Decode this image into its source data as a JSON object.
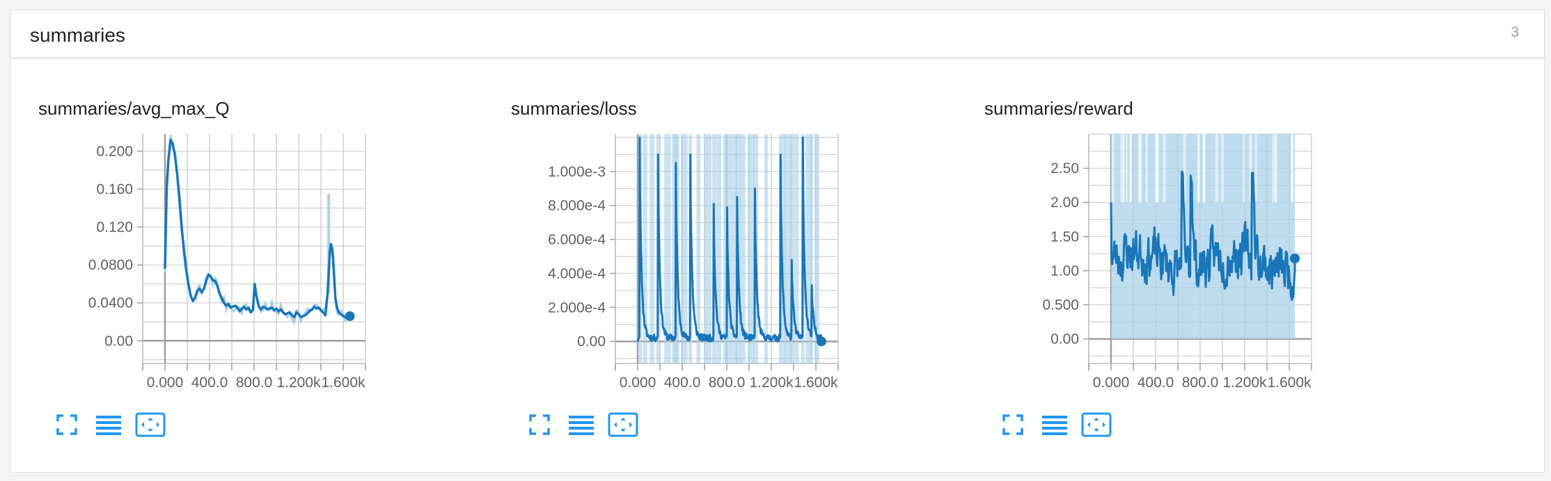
{
  "panel": {
    "title": "summaries",
    "count": "3"
  },
  "colors": {
    "line": "#1976b8",
    "band": "#a9d1e8",
    "grid": "#d0d0d0",
    "icon": "#2196f3"
  },
  "chart_data": [
    {
      "type": "line",
      "title": "summaries/avg_max_Q",
      "xlim": [
        -200,
        1800
      ],
      "ylim": [
        -0.024,
        0.218
      ],
      "x_ticks": [
        0,
        400,
        800,
        1200,
        1600
      ],
      "x_tick_labels": [
        "0.000",
        "400.0",
        "800.0",
        "1.200k",
        "1.600k"
      ],
      "y_ticks": [
        0,
        0.04,
        0.08,
        0.12,
        0.16,
        0.2
      ],
      "y_tick_labels": [
        "0.00",
        "0.0400",
        "0.0800",
        "0.120",
        "0.160",
        "0.200"
      ],
      "grid": true,
      "series": [
        {
          "x": [
            0,
            15,
            30,
            50,
            70,
            90,
            110,
            130,
            150,
            170,
            190,
            210,
            230,
            250,
            270,
            290,
            310,
            330,
            350,
            370,
            390,
            410,
            430,
            450,
            470,
            490,
            510,
            530,
            550,
            570,
            590,
            610,
            630,
            650,
            670,
            690,
            710,
            730,
            750,
            770,
            790,
            805,
            820,
            840,
            860,
            880,
            900,
            920,
            940,
            960,
            980,
            1000,
            1020,
            1040,
            1060,
            1080,
            1100,
            1120,
            1140,
            1160,
            1180,
            1200,
            1220,
            1240,
            1260,
            1280,
            1300,
            1320,
            1340,
            1360,
            1380,
            1400,
            1420,
            1440,
            1460,
            1480,
            1490,
            1500,
            1510,
            1520,
            1530,
            1545,
            1560,
            1580,
            1600,
            1620,
            1640,
            1660
          ],
          "values": [
            0.076,
            0.16,
            0.19,
            0.212,
            0.208,
            0.195,
            0.175,
            0.15,
            0.12,
            0.095,
            0.075,
            0.06,
            0.048,
            0.042,
            0.045,
            0.052,
            0.055,
            0.051,
            0.055,
            0.063,
            0.07,
            0.068,
            0.064,
            0.063,
            0.058,
            0.05,
            0.045,
            0.04,
            0.037,
            0.039,
            0.035,
            0.036,
            0.037,
            0.035,
            0.031,
            0.034,
            0.036,
            0.033,
            0.035,
            0.03,
            0.033,
            0.06,
            0.048,
            0.037,
            0.033,
            0.036,
            0.035,
            0.033,
            0.034,
            0.035,
            0.032,
            0.034,
            0.031,
            0.033,
            0.03,
            0.028,
            0.029,
            0.03,
            0.027,
            0.025,
            0.03,
            0.028,
            0.025,
            0.026,
            0.027,
            0.029,
            0.032,
            0.033,
            0.036,
            0.034,
            0.035,
            0.032,
            0.03,
            0.027,
            0.05,
            0.094,
            0.102,
            0.098,
            0.085,
            0.065,
            0.045,
            0.035,
            0.03,
            0.028,
            0.026,
            0.025,
            0.025,
            0.026
          ]
        }
      ]
    },
    {
      "type": "line",
      "title": "summaries/loss",
      "xlim": [
        -200,
        1800
      ],
      "ylim": [
        -0.00013,
        0.00122
      ],
      "x_ticks": [
        0,
        400,
        800,
        1200,
        1600
      ],
      "x_tick_labels": [
        "0.000",
        "400.0",
        "800.0",
        "1.200k",
        "1.600k"
      ],
      "y_ticks": [
        0,
        0.0002,
        0.0004,
        0.0006,
        0.0008,
        0.001
      ],
      "y_tick_labels": [
        "0.00",
        "2.000e-4",
        "4.000e-4",
        "6.000e-4",
        "8.000e-4",
        "1.000e-3"
      ],
      "grid": true,
      "spikes": [
        {
          "x": 15,
          "peak": 0.0012
        },
        {
          "x": 180,
          "peak": 0.0011
        },
        {
          "x": 340,
          "peak": 0.00105
        },
        {
          "x": 470,
          "peak": 0.0011
        },
        {
          "x": 680,
          "peak": 0.00081
        },
        {
          "x": 800,
          "peak": 0.00079
        },
        {
          "x": 890,
          "peak": 0.00085
        },
        {
          "x": 1050,
          "peak": 0.0009
        },
        {
          "x": 1280,
          "peak": 0.0011
        },
        {
          "x": 1380,
          "peak": 0.00048
        },
        {
          "x": 1480,
          "peak": 0.0012
        },
        {
          "x": 1560,
          "peak": 0.00033
        }
      ],
      "series": [
        {
          "x": [
            1650
          ],
          "values": [
            0.0
          ]
        }
      ]
    },
    {
      "type": "line",
      "title": "summaries/reward",
      "xlim": [
        -200,
        1800
      ],
      "ylim": [
        -0.36,
        3.0
      ],
      "x_ticks": [
        0,
        400,
        800,
        1200,
        1600
      ],
      "x_tick_labels": [
        "0.000",
        "400.0",
        "800.0",
        "1.200k",
        "1.600k"
      ],
      "y_ticks": [
        0,
        0.5,
        1,
        1.5,
        2,
        2.5
      ],
      "y_tick_labels": [
        "0.00",
        "0.500",
        "1.00",
        "1.50",
        "2.00",
        "2.50"
      ],
      "grid": true,
      "band": [
        0,
        3.0
      ],
      "series": [
        {
          "x": [
            0,
            1650
          ],
          "values": [
            2.0,
            1.18
          ]
        }
      ]
    }
  ]
}
